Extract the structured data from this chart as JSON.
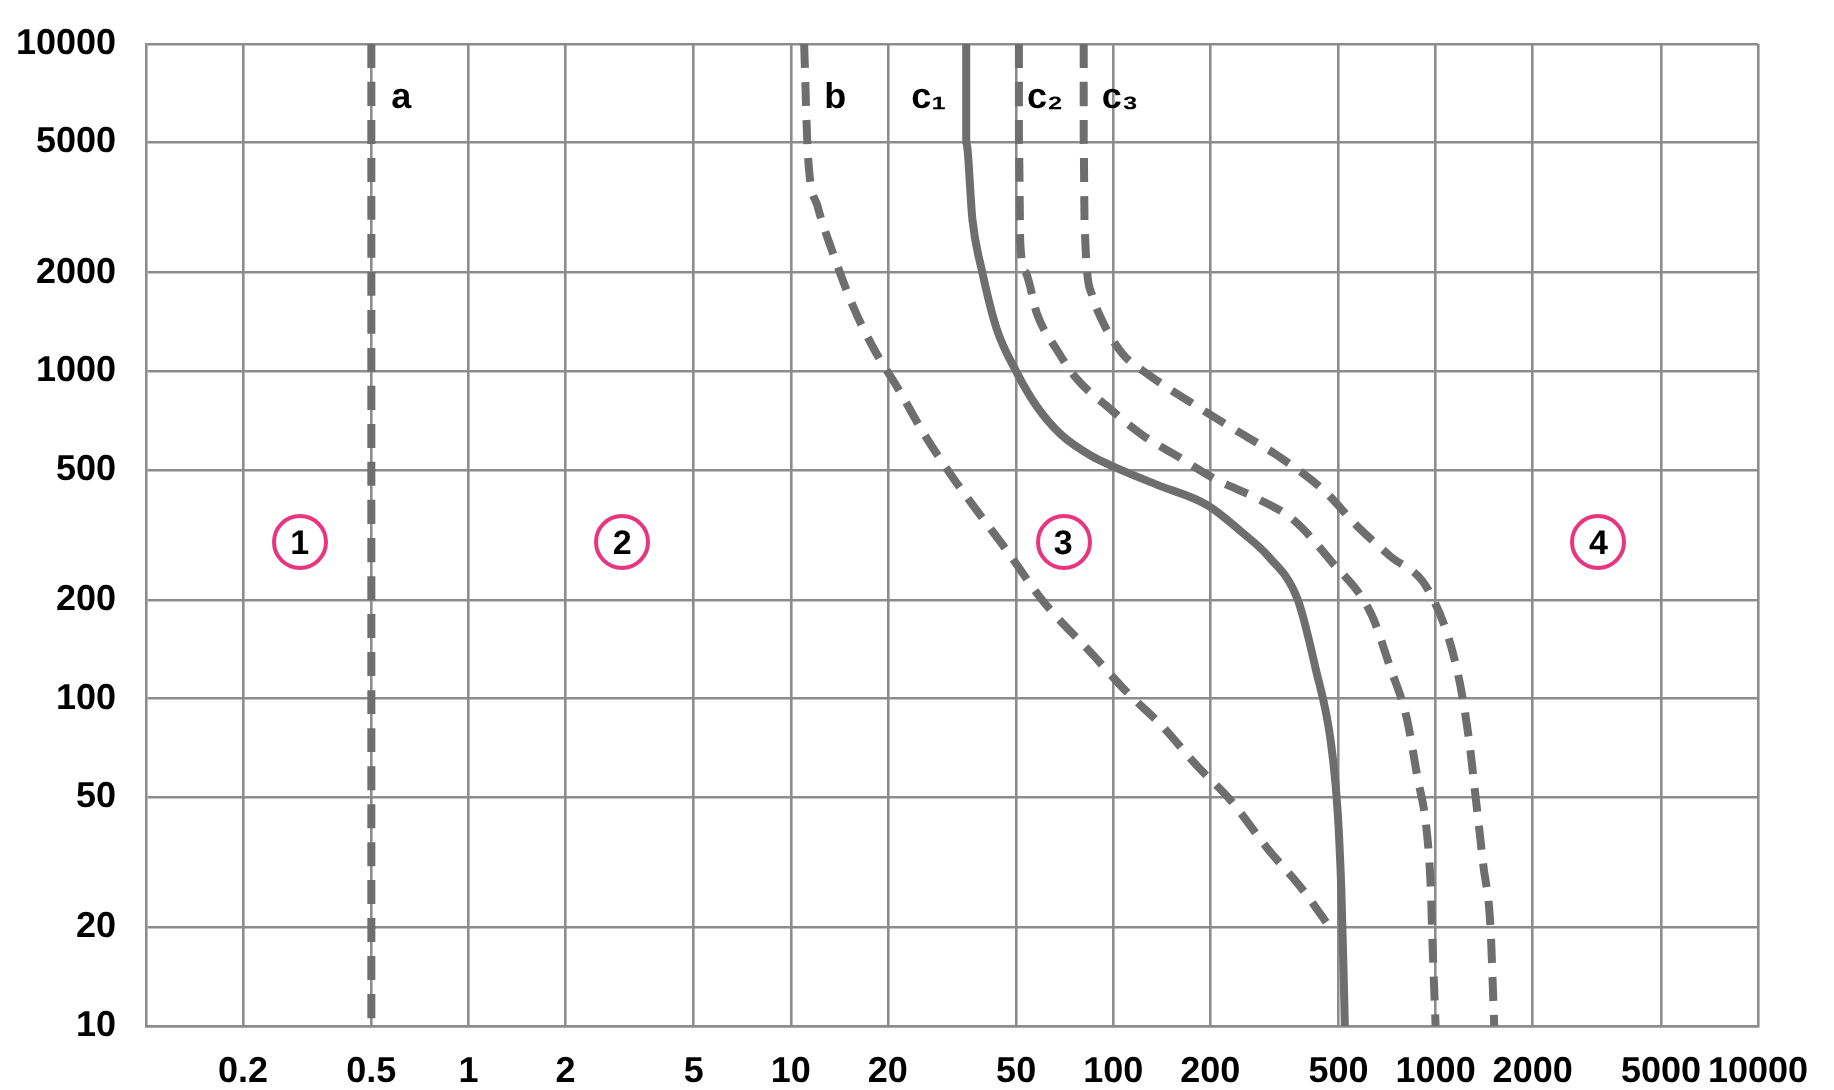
{
  "chart_data": {
    "type": "line",
    "log": "xy",
    "xlim": [
      0.1,
      10000
    ],
    "ylim": [
      10,
      10000
    ],
    "xticks": [
      0.2,
      0.5,
      1,
      2,
      5,
      10,
      20,
      50,
      100,
      200,
      500,
      1000,
      2000,
      5000,
      10000
    ],
    "yticks": [
      10,
      20,
      50,
      100,
      200,
      500,
      1000,
      2000,
      5000,
      10000
    ],
    "grid": true,
    "legend": false,
    "marker": "none",
    "series": [
      {
        "name": "a",
        "color": "#6e6e6e",
        "line_style": "dashed",
        "x": [
          0.5,
          0.5
        ],
        "values": [
          10000,
          10
        ]
      },
      {
        "name": "b",
        "color": "#6e6e6e",
        "line_style": "dashed",
        "x": [
          11,
          11.3,
          12.1,
          13.4,
          15.6,
          18.2,
          21.6,
          26,
          32,
          39,
          46,
          61,
          86,
          110,
          141,
          183,
          231,
          300,
          388,
          470
        ],
        "values": [
          10000,
          4600,
          3200,
          2350,
          1580,
          1160,
          880,
          640,
          470,
          360,
          290,
          197,
          137,
          105,
          83,
          62,
          49,
          35,
          26,
          20
        ]
      },
      {
        "name": "c₁",
        "color": "#6e6e6e",
        "line_style": "solid",
        "x": [
          35,
          35,
          36.6,
          39.3,
          43.5,
          50,
          58,
          69,
          86,
          101,
          137,
          196,
          253,
          303,
          374,
          425,
          472,
          497,
          510,
          518,
          523
        ],
        "values": [
          10000,
          5000,
          2900,
          2000,
          1350,
          1000,
          780,
          640,
          550,
          510,
          450,
          390,
          320,
          272,
          200,
          123,
          75,
          45,
          26,
          15,
          10
        ]
      },
      {
        "name": "c₂",
        "color": "#6e6e6e",
        "line_style": "dashed",
        "x": [
          51,
          51,
          51.5,
          53.6,
          58,
          67,
          77,
          96,
          124,
          160,
          206,
          281,
          362,
          471,
          632,
          722,
          814,
          877,
          937,
          965,
          980,
          1000
        ],
        "values": [
          10000,
          5000,
          2460,
          2000,
          1500,
          1160,
          950,
          780,
          636,
          547,
          470,
          408,
          352,
          265,
          181,
          125,
          87,
          58,
          40,
          27,
          17,
          10
        ]
      },
      {
        "name": "c₃",
        "color": "#6e6e6e",
        "line_style": "dashed",
        "x": [
          81,
          81,
          81.5,
          86,
          93,
          107,
          129,
          173,
          235,
          324,
          452,
          572,
          718,
          951,
          1158,
          1265,
          1334,
          1406,
          1480,
          1510,
          1520
        ],
        "values": [
          10000,
          5000,
          2850,
          1710,
          1410,
          1130,
          975,
          806,
          669,
          552,
          431,
          336,
          274,
          214,
          126,
          77,
          49,
          31,
          20,
          12,
          10
        ]
      }
    ],
    "annotations": [
      {
        "text": "1",
        "x": 0.3,
        "y": 300
      },
      {
        "text": "2",
        "x": 3,
        "y": 300
      },
      {
        "text": "3",
        "x": 70,
        "y": 300
      },
      {
        "text": "4",
        "x": 3200,
        "y": 300
      }
    ]
  }
}
